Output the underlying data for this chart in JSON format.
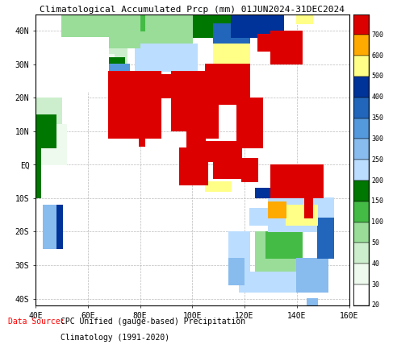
{
  "title": "Climatological Accumulated Prcp (mm) 01JUN2024-31DEC2024",
  "title_fontsize": 8.0,
  "title_color": "black",
  "xlabel_ticks": [
    "40E",
    "60E",
    "80E",
    "100E",
    "120E",
    "140E",
    "160E"
  ],
  "ylabel_ticks": [
    "40S",
    "30S",
    "20S",
    "10S",
    "EQ",
    "10N",
    "20N",
    "30N",
    "40N"
  ],
  "xlabel_vals": [
    40,
    60,
    80,
    100,
    120,
    140,
    160
  ],
  "ylabel_vals": [
    -40,
    -30,
    -20,
    -10,
    0,
    10,
    20,
    30,
    40
  ],
  "xlim": [
    40,
    160
  ],
  "ylim": [
    -42,
    45
  ],
  "levels": [
    20,
    30,
    40,
    50,
    100,
    150,
    200,
    250,
    300,
    350,
    400,
    500,
    600,
    700,
    9999
  ],
  "colors_map": [
    "#ffffff",
    "#eefaee",
    "#cceecc",
    "#99dd99",
    "#44bb44",
    "#007700",
    "#bbddff",
    "#88bbee",
    "#5599dd",
    "#2266bb",
    "#003399",
    "#ffff88",
    "#ffaa00",
    "#dd0000"
  ],
  "colorbar_labels": [
    "700",
    "600",
    "500",
    "400",
    "350",
    "300",
    "250",
    "200",
    "150",
    "100",
    "50",
    "40",
    "30",
    "20"
  ],
  "colorbar_colors": [
    "#dd0000",
    "#ffaa00",
    "#ffff88",
    "#003399",
    "#2266bb",
    "#5599dd",
    "#88bbee",
    "#bbddff",
    "#007700",
    "#44bb44",
    "#99dd99",
    "#cceecc",
    "#eefaee",
    "#ffffff"
  ],
  "data_source_red": "Data Source:",
  "data_source_black1": "CPC Unified (gauge-based) Precipitation",
  "data_source_black2": "Climatology (1991-2020)",
  "bg_color": "#ffffff",
  "ocean_color": "#ffffff",
  "grid_color": "#aaaaaa",
  "border_color": "black"
}
